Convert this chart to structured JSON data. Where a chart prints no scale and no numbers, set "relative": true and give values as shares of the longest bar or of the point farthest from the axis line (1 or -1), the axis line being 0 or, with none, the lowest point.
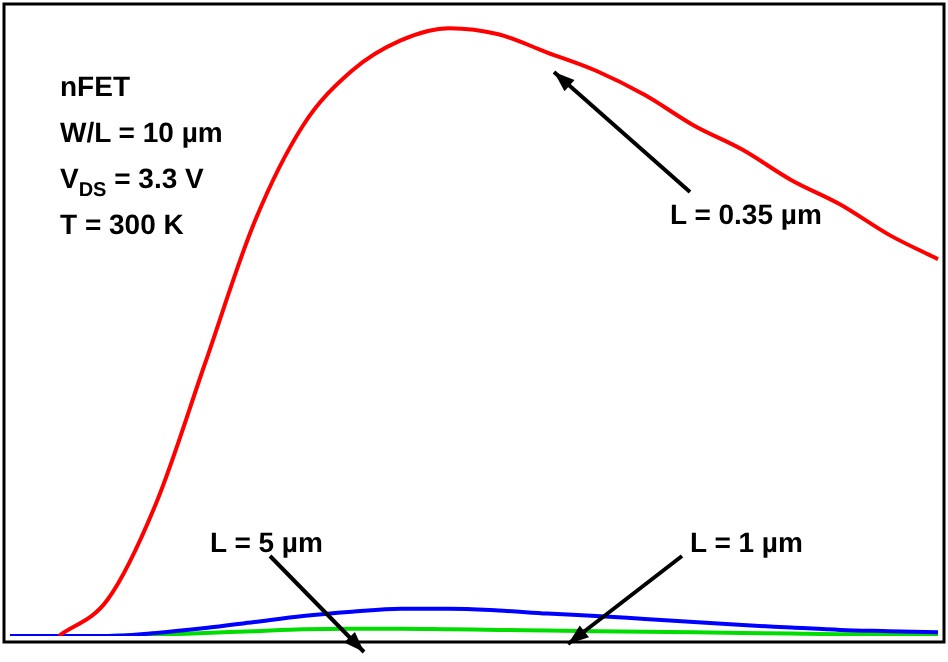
{
  "chart_data": {
    "type": "line",
    "relative": true,
    "legend": false,
    "grid": false,
    "marker": "none",
    "line_style": "solid",
    "categories": [
      null,
      null,
      null,
      null,
      null,
      null,
      null,
      null,
      null,
      null,
      null,
      null,
      null,
      null,
      null,
      null,
      null,
      null,
      null,
      null
    ],
    "series": [
      {
        "color": "#ff0000",
        "values": [
          null,
          0,
          0.06,
          0.22,
          0.45,
          0.68,
          0.84,
          0.93,
          0.98,
          1,
          0.99,
          0.96,
          0.93,
          0.89,
          0.84,
          0.8,
          0.75,
          0.71,
          0.66,
          0.62
        ]
      },
      {
        "color": "#0000ff",
        "values": [
          0,
          0,
          0,
          0.005,
          0.013,
          0.023,
          0.033,
          0.04,
          0.045,
          0.045,
          0.042,
          0.037,
          0.033,
          0.028,
          0.023,
          0.018,
          0.014,
          0.01,
          0.008,
          0.006
        ]
      },
      {
        "color": "#00dd00",
        "values": [
          null,
          null,
          0,
          0.002,
          0.005,
          0.008,
          0.011,
          0.012,
          0.012,
          0.011,
          0.01,
          0.009,
          0.008,
          0.007,
          0.006,
          0.005,
          0.004,
          0.003,
          0.003,
          0.002
        ]
      }
    ],
    "annotations": [
      "nFET",
      "W/L = 10 µm",
      "V$_{DS}$ = 3.3 V",
      "T = 300 K",
      "L = 0.35 µm",
      "L = 1 µm",
      "L = 5 µm"
    ]
  }
}
